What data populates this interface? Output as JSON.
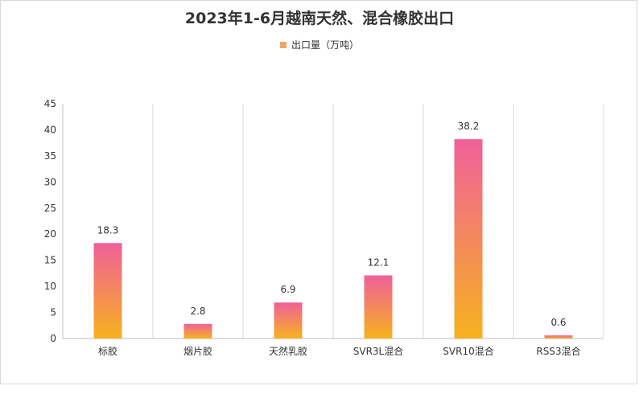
{
  "chart_data": {
    "type": "bar",
    "title": "2023年1-6月越南天然、混合橡胶出口",
    "legend": "出口量（万吨）",
    "categories": [
      "标胶",
      "烟片胶",
      "天然乳胶",
      "SVR3L混合",
      "SVR10混合",
      "RSS3混合"
    ],
    "series": [
      {
        "name": "出口量（万吨）",
        "values": [
          18.3,
          2.8,
          6.9,
          12.1,
          38.2,
          0.6
        ]
      }
    ],
    "ylim": [
      0,
      45
    ],
    "yticks": [
      0,
      5,
      10,
      15,
      20,
      25,
      30,
      35,
      40,
      45
    ],
    "grid": "vertical category separators",
    "legend_position": "top-center",
    "colors": {
      "bar_top": "#f0609a",
      "bar_bottom": "#f7b21f",
      "legend": "#f4a268"
    }
  }
}
